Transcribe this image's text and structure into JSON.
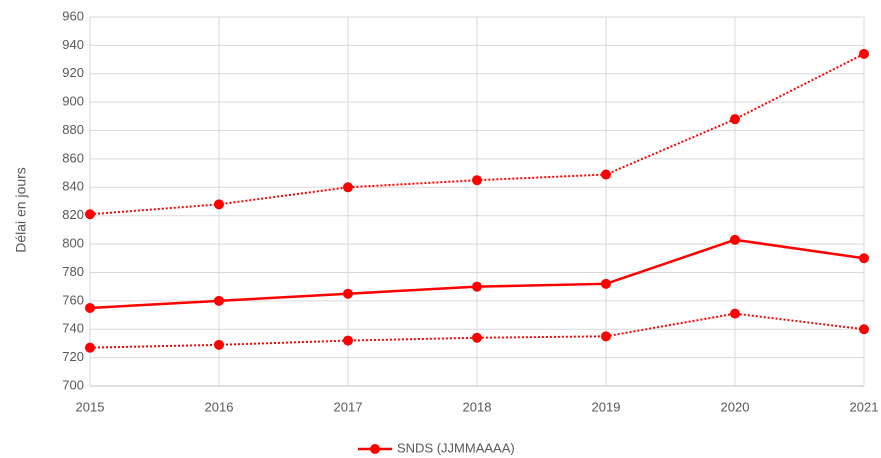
{
  "chart_data": {
    "type": "line",
    "y_label": "Délai en jours",
    "x": [
      2015,
      2016,
      2017,
      2018,
      2019,
      2020,
      2021
    ],
    "xlim": [
      2015,
      2021
    ],
    "xticks": [
      2015,
      2016,
      2017,
      2018,
      2019,
      2020,
      2021
    ],
    "ylim": [
      700,
      960
    ],
    "yticks": [
      700,
      720,
      740,
      760,
      780,
      800,
      820,
      840,
      860,
      880,
      900,
      920,
      940,
      960
    ],
    "grid": true,
    "legend": "bottom",
    "series": [
      {
        "name": "SNDS (JJMMAAAA)",
        "color": "#ff0000",
        "style": "solid",
        "values": [
          755,
          760,
          765,
          770,
          772,
          803,
          790
        ]
      },
      {
        "color": "#ff0000",
        "style": "dotted",
        "values": [
          821,
          828,
          840,
          845,
          849,
          888,
          934
        ]
      },
      {
        "color": "#ff0000",
        "style": "dotted",
        "values": [
          727,
          729,
          732,
          734,
          735,
          751,
          740
        ]
      }
    ]
  }
}
